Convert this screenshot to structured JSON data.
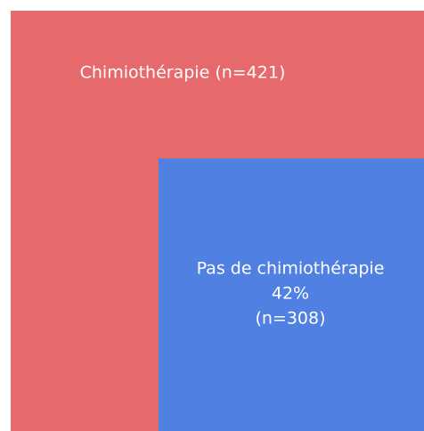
{
  "outer": {
    "label": "Chimiothérapie (n=421)"
  },
  "inner": {
    "lines": [
      "Pas de chimiothérapie",
      "42%",
      "(n=308)"
    ]
  }
}
